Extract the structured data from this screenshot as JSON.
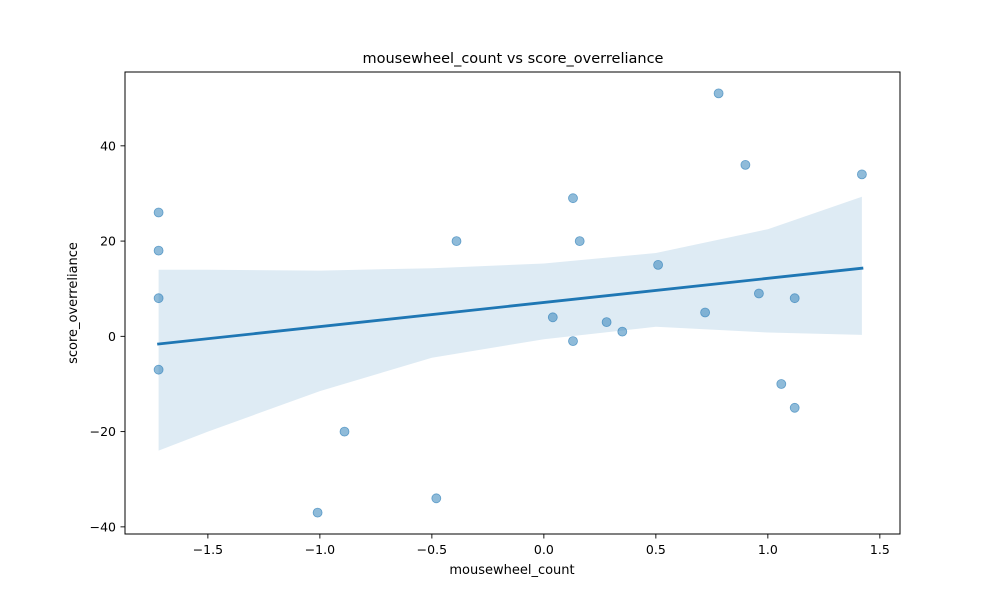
{
  "chart_data": {
    "type": "scatter",
    "title": "mousewheel_count vs score_overreliance",
    "xlabel": "mousewheel_count",
    "ylabel": "score_overreliance",
    "xlim": [
      -1.87,
      1.59
    ],
    "ylim": [
      -41.5,
      55.5
    ],
    "xticks": [
      -1.5,
      -1.0,
      -0.5,
      0.0,
      0.5,
      1.0,
      1.5
    ],
    "xtick_labels": [
      "−1.5",
      "−1.0",
      "−0.5",
      "0.0",
      "0.5",
      "1.0",
      "1.5"
    ],
    "yticks": [
      -40,
      -20,
      0,
      20,
      40
    ],
    "ytick_labels": [
      "−40",
      "−20",
      "0",
      "20",
      "40"
    ],
    "grid": false,
    "colors": {
      "points": "#1f77b4",
      "regression_line": "#1f77b4",
      "confidence_band": "#1f77b4"
    },
    "points": [
      {
        "x": -1.72,
        "y": 26
      },
      {
        "x": -1.72,
        "y": 18
      },
      {
        "x": -1.72,
        "y": 8
      },
      {
        "x": -1.72,
        "y": -7
      },
      {
        "x": -1.01,
        "y": -37
      },
      {
        "x": -0.89,
        "y": -20
      },
      {
        "x": -0.48,
        "y": -34
      },
      {
        "x": -0.39,
        "y": 20
      },
      {
        "x": 0.04,
        "y": 4
      },
      {
        "x": 0.13,
        "y": 29
      },
      {
        "x": 0.13,
        "y": -1
      },
      {
        "x": 0.16,
        "y": 20
      },
      {
        "x": 0.28,
        "y": 3
      },
      {
        "x": 0.35,
        "y": 1
      },
      {
        "x": 0.51,
        "y": 15
      },
      {
        "x": 0.72,
        "y": 5
      },
      {
        "x": 0.78,
        "y": 51
      },
      {
        "x": 0.9,
        "y": 36
      },
      {
        "x": 0.96,
        "y": 9
      },
      {
        "x": 1.06,
        "y": -10
      },
      {
        "x": 1.12,
        "y": 8
      },
      {
        "x": 1.12,
        "y": -15
      },
      {
        "x": 1.42,
        "y": 34
      }
    ],
    "regression_line": [
      {
        "x": -1.72,
        "y": -1.6
      },
      {
        "x": 1.42,
        "y": 14.3
      }
    ],
    "confidence_band": {
      "x": [
        -1.72,
        -1.5,
        -1.0,
        -0.5,
        0.0,
        0.5,
        1.0,
        1.42
      ],
      "upper": [
        14.0,
        14.0,
        13.8,
        14.3,
        15.3,
        17.5,
        22.5,
        29.3
      ],
      "lower": [
        -24.0,
        -20.0,
        -11.5,
        -4.5,
        -0.6,
        2.0,
        0.8,
        0.3
      ]
    }
  }
}
